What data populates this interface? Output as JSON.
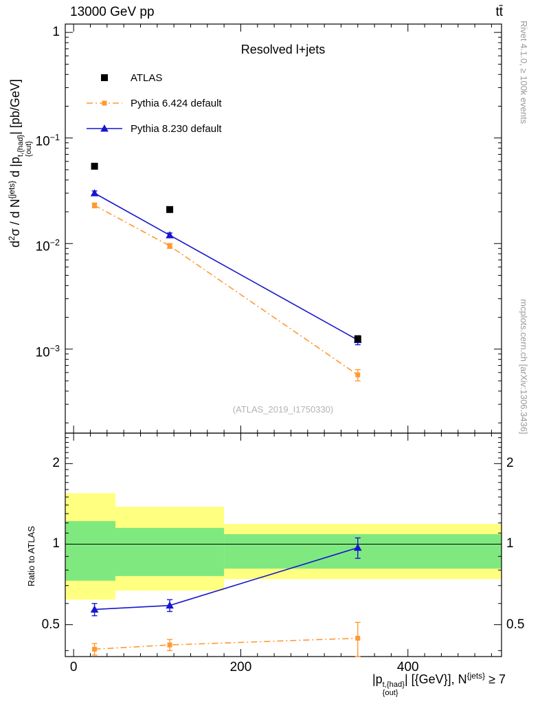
{
  "captions": {
    "rivet": "Rivet 4.1.0, ≥ 100k events",
    "mcplots": "mcplots.cern.ch [arXiv:1306.3436]"
  },
  "chart_data": {
    "type": "line",
    "title": "Resolved l+jets",
    "top_left_label": "13000 GeV pp",
    "top_right_label": "tt̄",
    "watermark": "(ATLAS_2019_I1750330)",
    "xlabel_text": "|p_{out}^{t,{had}}| [{GeV}], N^{jets} ≥ 7",
    "xlabel_parts": {
      "p1": "|p",
      "sub": "{out}",
      "sup": "t,{had}",
      "p2": "| [{GeV}], N",
      "p3": "{jets}",
      "p4": " ≥ 7"
    },
    "xlim": [
      -10,
      512
    ],
    "xticks": {
      "major": [
        {
          "v": 0,
          "label": "0"
        },
        {
          "v": 200,
          "label": "200"
        },
        {
          "v": 400,
          "label": "400"
        }
      ],
      "minor_step": 20
    },
    "main": {
      "ylabel_text": "d²σ / d N^{jets} d |p_{out}^{t,{had}}| [pb/GeV]",
      "ylabel_parts": {
        "p1": "d",
        "p2": "2",
        "p3": "σ / d N",
        "p4": "{jets}",
        "p5": " d |p",
        "sub": "{out}",
        "sup": "t,{had}",
        "p6": "| [pb/GeV]"
      },
      "ylim": [
        0.00016,
        1.2
      ],
      "yticks": [
        {
          "v": 1,
          "label": "1"
        },
        {
          "v": 0.1,
          "label": "10",
          "exp": "−1"
        },
        {
          "v": 0.01,
          "label": "10",
          "exp": "−2"
        },
        {
          "v": 0.001,
          "label": "10",
          "exp": "−3"
        }
      ],
      "series": [
        {
          "name": "ATLAS",
          "color": "#000000",
          "marker": "square",
          "msize": 10,
          "line": "none",
          "x": [
            25,
            115,
            340
          ],
          "y": [
            0.054,
            0.021,
            0.00125
          ]
        },
        {
          "name": "Pythia 6.424 default",
          "color": "#ff9933",
          "marker": "square",
          "msize": 7,
          "line": "dashdot",
          "x": [
            25,
            115,
            340
          ],
          "y": [
            0.023,
            0.0095,
            0.00057
          ],
          "yerr": [
            0.0012,
            0.0005,
            7e-05
          ]
        },
        {
          "name": "Pythia 8.230 default",
          "color": "#1515d0",
          "marker": "triangle",
          "msize": 10,
          "line": "solid",
          "x": [
            25,
            115,
            340
          ],
          "y": [
            0.03,
            0.012,
            0.00122
          ],
          "yerr": [
            0.0015,
            0.0006,
            0.00012
          ]
        }
      ]
    },
    "ratio": {
      "ylabel": "Ratio to ATLAS",
      "ylim": [
        0.38,
        2.6
      ],
      "yticks": [
        {
          "v": 0.5,
          "label": "0.5"
        },
        {
          "v": 1,
          "label": "1"
        },
        {
          "v": 2,
          "label": "2"
        }
      ],
      "band_colors": {
        "yellow": "#ffff80",
        "green": "#7fe97f"
      },
      "bands": [
        {
          "x0": -10,
          "x1": 50,
          "yellow": [
            0.62,
            1.55
          ],
          "green": [
            0.73,
            1.22
          ]
        },
        {
          "x0": 50,
          "x1": 180,
          "yellow": [
            0.67,
            1.38
          ],
          "green": [
            0.76,
            1.15
          ]
        },
        {
          "x0": 180,
          "x1": 512,
          "yellow": [
            0.74,
            1.19
          ],
          "green": [
            0.81,
            1.09
          ]
        }
      ],
      "series": [
        {
          "name": "Pythia 6.424 default",
          "color": "#ff9933",
          "marker": "square",
          "msize": 7,
          "line": "dashdot",
          "x": [
            25,
            115,
            340
          ],
          "y": [
            0.405,
            0.42,
            0.445
          ],
          "yerr": [
            0.02,
            0.02,
            0.065
          ]
        },
        {
          "name": "Pythia 8.230 default",
          "color": "#1515d0",
          "marker": "triangle",
          "msize": 10,
          "line": "solid",
          "x": [
            25,
            115,
            340
          ],
          "y": [
            0.57,
            0.59,
            0.97
          ],
          "yerr": [
            0.03,
            0.03,
            0.085
          ]
        }
      ]
    }
  }
}
